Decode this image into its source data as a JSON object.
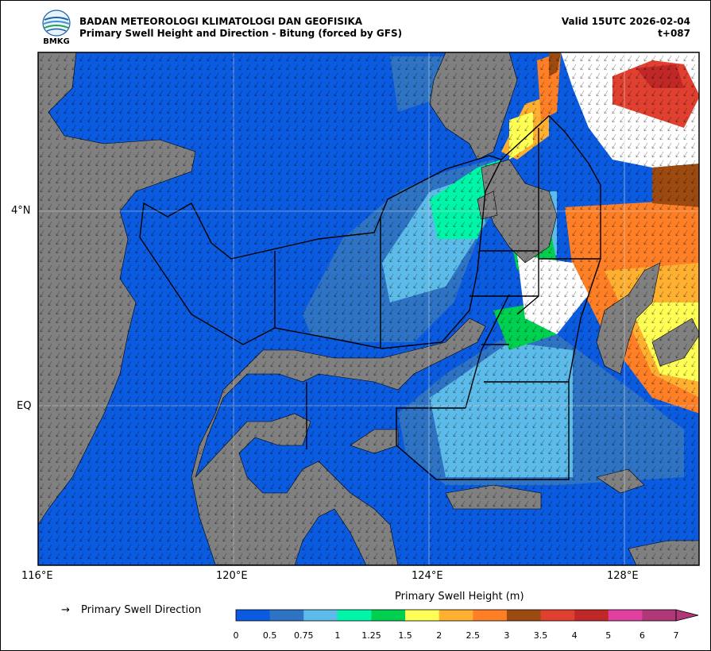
{
  "header": {
    "agency": "BADAN METEOROLOGI KLIMATOLOGI DAN GEOFISIKA",
    "product": "Primary Swell Height and Direction - Bitung (forced by GFS)",
    "valid": "Valid 15UTC 2026-02-04",
    "lead": "t+087",
    "logo_text": "BMKG"
  },
  "map": {
    "lon_range": [
      116,
      129.8
    ],
    "lat_range": [
      -2.4,
      6.6
    ],
    "lon_ticks": [
      "116°E",
      "120°E",
      "124°E",
      "128°E"
    ],
    "lat_ticks": [
      "4°N",
      "EQ"
    ],
    "land_color": "#808080",
    "no_data_color": "#ffffff",
    "arrow_direction": "south-southwest"
  },
  "legend": {
    "arrow_symbol": "→",
    "arrow_label": "Primary Swell Direction"
  },
  "colorbar": {
    "title": "Primary Swell Height (m)",
    "labels": [
      "0",
      "0.5",
      "0.75",
      "1",
      "1.25",
      "1.5",
      "2",
      "2.5",
      "3",
      "3.5",
      "4",
      "5",
      "6",
      "7"
    ],
    "colors": [
      "#0a5be0",
      "#2f74c4",
      "#5cbbe8",
      "#00f5a8",
      "#00d050",
      "#ffff55",
      "#ffb030",
      "#ff7f27",
      "#9c4a10",
      "#e04030",
      "#c02828",
      "#e040a0",
      "#b03878"
    ]
  }
}
